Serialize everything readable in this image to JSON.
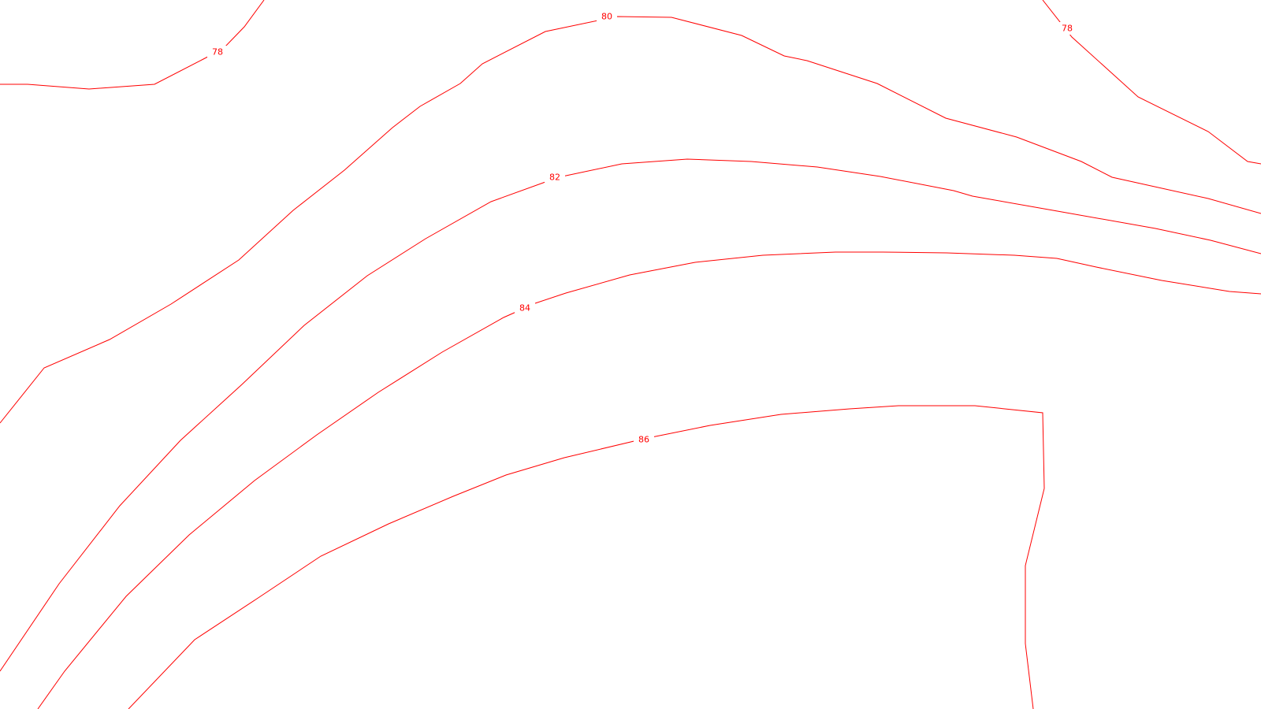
{
  "map": {
    "background_color": "#ffffff",
    "line_color": "#ff0000",
    "contours": [
      {
        "id": "78-left",
        "elevation": "78"
      },
      {
        "id": "78-right",
        "elevation": "78"
      },
      {
        "id": "80",
        "elevation": "80"
      },
      {
        "id": "82",
        "elevation": "82"
      },
      {
        "id": "84",
        "elevation": "84"
      },
      {
        "id": "86",
        "elevation": "86"
      }
    ]
  }
}
